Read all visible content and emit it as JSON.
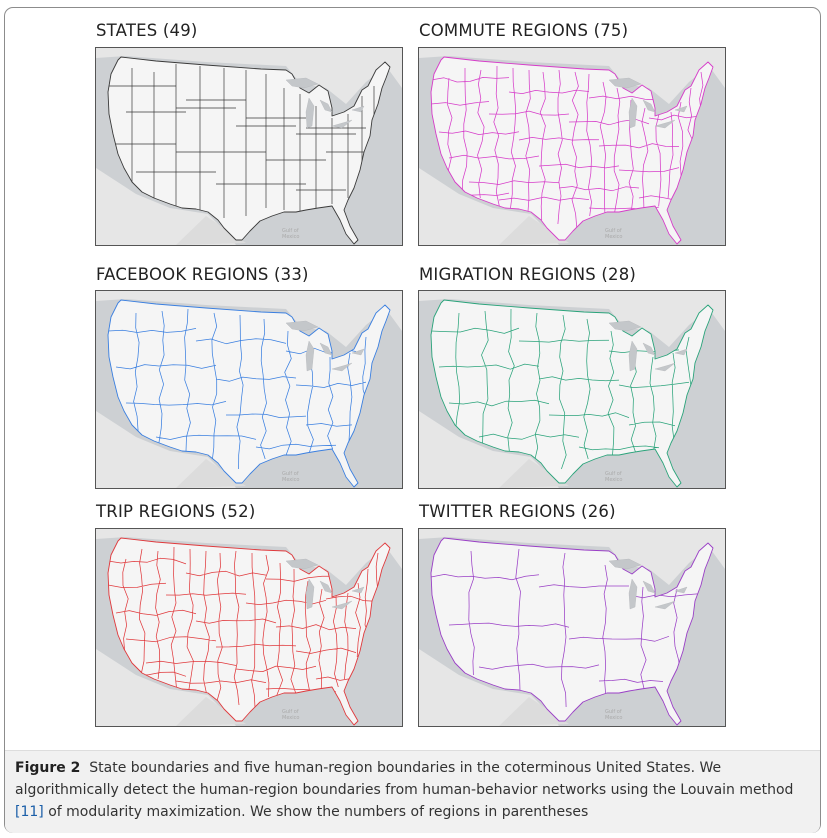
{
  "panels": [
    {
      "id": "states",
      "title": "STATES (49)",
      "color": "#3a3a3a",
      "style": "states"
    },
    {
      "id": "commute",
      "title": "COMMUTE REGIONS (75)",
      "color": "#d63cc9",
      "style": "dense"
    },
    {
      "id": "facebook",
      "title": "FACEBOOK REGIONS (33)",
      "color": "#3a7fe0",
      "style": "medium"
    },
    {
      "id": "migration",
      "title": "MIGRATION REGIONS (28)",
      "color": "#2aa37a",
      "style": "medium"
    },
    {
      "id": "trip",
      "title": "TRIP REGIONS (52)",
      "color": "#e0393c",
      "style": "dense"
    },
    {
      "id": "twitter",
      "title": "TWITTER REGIONS (26)",
      "color": "#9a3fc6",
      "style": "sparse"
    }
  ],
  "map_labels": {
    "gulf": "Gulf of",
    "mexico": "Mexico"
  },
  "caption": {
    "label": "Figure 2",
    "text_before_ref": "State boundaries and five human-region boundaries in the coterminous United States. We algorithmically detect the human-region boundaries from human-behavior networks using the Louvain method ",
    "ref": "[11]",
    "text_after_ref": " of modularity maximization. We show the numbers of regions in parentheses"
  }
}
